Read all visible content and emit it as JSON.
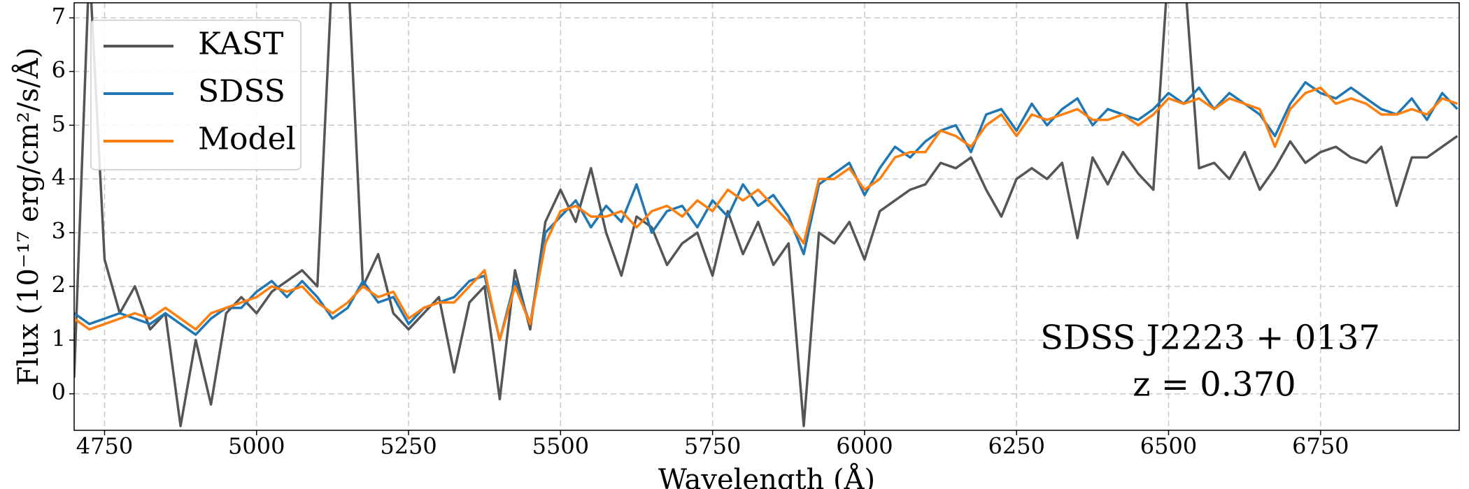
{
  "chart_data": {
    "type": "line",
    "xlabel": "Wavelength (Å)",
    "ylabel": "Flux (10⁻¹⁷ erg/cm²/s/Å)",
    "annotations": [
      "SDSS J2223 + 0137",
      "z = 0.370"
    ],
    "x": [
      4700,
      4725,
      4750,
      4775,
      4800,
      4825,
      4850,
      4875,
      4900,
      4925,
      4950,
      4975,
      5000,
      5025,
      5050,
      5075,
      5100,
      5125,
      5150,
      5175,
      5200,
      5225,
      5250,
      5275,
      5300,
      5325,
      5350,
      5375,
      5400,
      5425,
      5450,
      5475,
      5500,
      5525,
      5550,
      5575,
      5600,
      5625,
      5650,
      5675,
      5700,
      5725,
      5750,
      5775,
      5800,
      5825,
      5850,
      5875,
      5900,
      5925,
      5950,
      5975,
      6000,
      6025,
      6050,
      6075,
      6100,
      6125,
      6150,
      6175,
      6200,
      6225,
      6250,
      6275,
      6300,
      6325,
      6350,
      6375,
      6400,
      6425,
      6450,
      6475,
      6500,
      6525,
      6550,
      6575,
      6600,
      6625,
      6650,
      6675,
      6700,
      6725,
      6750,
      6775,
      6800,
      6825,
      6850,
      6875,
      6900,
      6925,
      6950,
      6975
    ],
    "series": [
      {
        "name": "KAST",
        "color": "#555555",
        "values": [
          0.3,
          8,
          2.5,
          1.5,
          2.0,
          1.2,
          1.5,
          -0.6,
          1.0,
          -0.2,
          1.5,
          1.8,
          1.5,
          1.9,
          2.1,
          2.3,
          2.0,
          8,
          8,
          2.0,
          2.6,
          1.5,
          1.2,
          1.5,
          1.8,
          0.4,
          1.7,
          2.0,
          -0.1,
          2.3,
          1.2,
          3.2,
          3.8,
          3.2,
          4.2,
          3.0,
          2.2,
          3.3,
          3.1,
          2.4,
          2.8,
          3.0,
          2.2,
          3.4,
          2.6,
          3.2,
          2.4,
          2.8,
          -0.6,
          3.0,
          2.8,
          3.2,
          2.5,
          3.4,
          3.6,
          3.8,
          3.9,
          4.3,
          4.2,
          4.4,
          3.8,
          3.3,
          4.0,
          4.2,
          4.0,
          4.3,
          2.9,
          4.4,
          3.9,
          4.5,
          4.1,
          3.8,
          8,
          8,
          4.2,
          4.3,
          4.0,
          4.5,
          3.8,
          4.2,
          4.7,
          4.3,
          4.5,
          4.6,
          4.4,
          4.3,
          4.6,
          3.5,
          4.4,
          4.4,
          4.6,
          4.8
        ]
      },
      {
        "name": "SDSS",
        "color": "#1f77b4",
        "values": [
          1.5,
          1.3,
          1.4,
          1.5,
          1.4,
          1.3,
          1.5,
          1.3,
          1.1,
          1.4,
          1.6,
          1.6,
          1.9,
          2.1,
          1.8,
          2.1,
          1.8,
          1.4,
          1.6,
          2.1,
          1.7,
          1.8,
          1.3,
          1.6,
          1.7,
          1.8,
          2.1,
          2.2,
          1.0,
          2.1,
          1.3,
          3.0,
          3.3,
          3.6,
          3.1,
          3.5,
          3.2,
          3.9,
          3.0,
          3.4,
          3.5,
          3.1,
          3.6,
          3.3,
          3.9,
          3.5,
          3.7,
          3.3,
          2.6,
          3.9,
          4.1,
          4.3,
          3.7,
          4.2,
          4.6,
          4.4,
          4.7,
          4.9,
          5.0,
          4.5,
          5.2,
          5.3,
          4.9,
          5.4,
          5.0,
          5.3,
          5.5,
          5.0,
          5.3,
          5.2,
          5.1,
          5.3,
          5.6,
          5.4,
          5.7,
          5.3,
          5.6,
          5.4,
          5.2,
          4.8,
          5.4,
          5.8,
          5.6,
          5.5,
          5.7,
          5.5,
          5.3,
          5.2,
          5.5,
          5.1,
          5.6,
          5.3
        ]
      },
      {
        "name": "Model",
        "color": "#ff7f0e",
        "values": [
          1.4,
          1.2,
          1.3,
          1.4,
          1.5,
          1.4,
          1.6,
          1.4,
          1.2,
          1.5,
          1.6,
          1.7,
          1.8,
          2.0,
          1.9,
          2.0,
          1.7,
          1.5,
          1.7,
          2.0,
          1.8,
          1.9,
          1.4,
          1.6,
          1.7,
          1.7,
          2.0,
          2.3,
          1.0,
          2.0,
          1.3,
          2.8,
          3.4,
          3.5,
          3.3,
          3.3,
          3.4,
          3.1,
          3.4,
          3.5,
          3.3,
          3.6,
          3.4,
          3.8,
          3.6,
          3.8,
          3.5,
          3.2,
          2.8,
          4.0,
          4.0,
          4.2,
          3.8,
          4.0,
          4.4,
          4.5,
          4.5,
          4.9,
          4.8,
          4.6,
          5.0,
          5.2,
          4.8,
          5.2,
          5.1,
          5.2,
          5.3,
          5.1,
          5.1,
          5.2,
          5.0,
          5.2,
          5.5,
          5.4,
          5.5,
          5.3,
          5.5,
          5.4,
          5.3,
          4.6,
          5.3,
          5.6,
          5.7,
          5.4,
          5.5,
          5.4,
          5.2,
          5.2,
          5.3,
          5.2,
          5.5,
          5.4
        ]
      }
    ],
    "xlim": [
      4700,
      6978
    ],
    "ylim": [
      -0.68,
      7.28
    ],
    "xticks": [
      4750,
      5000,
      5250,
      5500,
      5750,
      6000,
      6250,
      6500,
      6750
    ],
    "yticks": [
      0,
      1,
      2,
      3,
      4,
      5,
      6,
      7
    ],
    "grid": true,
    "legend": "upper left"
  }
}
